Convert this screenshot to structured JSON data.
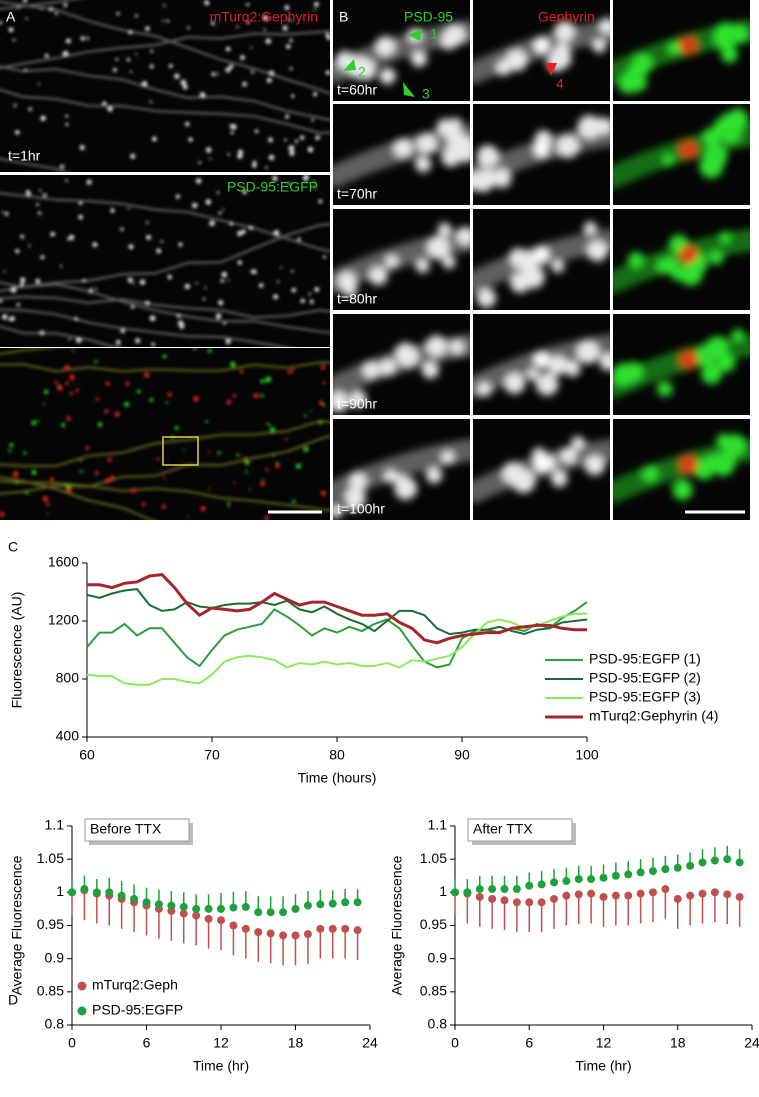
{
  "panel_a": {
    "label": "A",
    "gephyrin_label": "mTurq2:Gephyrin",
    "time": "t=1hr",
    "psd_label": "PSD-95:EGFP"
  },
  "panel_b": {
    "label": "B",
    "psd_header": "PSD-95",
    "gephyrin_header": "Gephyrin",
    "markers": [
      "1",
      "2",
      "3",
      "4"
    ],
    "times": [
      "t=60hr",
      "t=70hr",
      "t=80hr",
      "t=90hr",
      "t=100hr"
    ]
  },
  "chart_data": [
    {
      "type": "line",
      "panel_label": "C",
      "ylabel": "Fluorescence (AU)",
      "xlabel": "Time (hours)",
      "xlim": [
        60,
        100
      ],
      "xticks": [
        60,
        70,
        80,
        90,
        100
      ],
      "ylim": [
        400,
        1600
      ],
      "yticks": [
        400,
        800,
        1200,
        1600
      ],
      "legend": "right",
      "x": [
        60,
        61,
        62,
        63,
        64,
        65,
        66,
        67,
        68,
        69,
        70,
        71,
        72,
        73,
        74,
        75,
        76,
        77,
        78,
        79,
        80,
        81,
        82,
        83,
        84,
        85,
        86,
        87,
        88,
        89,
        90,
        91,
        92,
        93,
        94,
        95,
        96,
        97,
        98,
        99,
        100
      ],
      "series": [
        {
          "name": "PSD-95:EGFP (1)",
          "color": "#2e9e3a",
          "values": [
            1020,
            1120,
            1120,
            1180,
            1100,
            1150,
            1150,
            1050,
            950,
            890,
            1000,
            1100,
            1140,
            1160,
            1180,
            1280,
            1230,
            1170,
            1100,
            1150,
            1120,
            1160,
            1130,
            1180,
            1210,
            1150,
            1030,
            920,
            880,
            900,
            1080,
            1130,
            1140,
            1120,
            1150,
            1130,
            1180,
            1150,
            1220,
            1270,
            1330
          ]
        },
        {
          "name": "PSD-95:EGFP (2)",
          "color": "#1b6b34",
          "values": [
            1380,
            1360,
            1390,
            1410,
            1420,
            1310,
            1270,
            1280,
            1330,
            1300,
            1290,
            1310,
            1320,
            1320,
            1330,
            1310,
            1340,
            1280,
            1260,
            1300,
            1250,
            1210,
            1180,
            1130,
            1200,
            1270,
            1270,
            1240,
            1150,
            1110,
            1120,
            1140,
            1140,
            1160,
            1130,
            1110,
            1140,
            1150,
            1190,
            1200,
            1210
          ]
        },
        {
          "name": "PSD-95:EGFP (3)",
          "color": "#8ee860",
          "values": [
            830,
            820,
            820,
            770,
            760,
            760,
            800,
            800,
            780,
            770,
            830,
            920,
            950,
            960,
            950,
            930,
            880,
            910,
            900,
            920,
            900,
            910,
            890,
            890,
            910,
            880,
            930,
            920,
            940,
            960,
            1020,
            1110,
            1190,
            1210,
            1190,
            1150,
            1170,
            1200,
            1230,
            1250,
            1250
          ]
        },
        {
          "name": "mTurq2:Gephyrin (4)",
          "color": "#a3262a",
          "values": [
            1450,
            1450,
            1430,
            1460,
            1470,
            1510,
            1520,
            1430,
            1320,
            1240,
            1290,
            1280,
            1270,
            1280,
            1330,
            1390,
            1350,
            1310,
            1330,
            1330,
            1300,
            1270,
            1240,
            1240,
            1250,
            1190,
            1150,
            1070,
            1050,
            1080,
            1100,
            1110,
            1120,
            1120,
            1150,
            1160,
            1170,
            1170,
            1150,
            1140,
            1140
          ]
        }
      ]
    },
    {
      "type": "scatter",
      "panel_label": "D",
      "title": "Before TTX",
      "ylabel": "Average Fluorescence",
      "xlabel": "Time (hr)",
      "xlim": [
        0,
        24
      ],
      "xticks": [
        0,
        6,
        12,
        18,
        24
      ],
      "ylim": [
        0.8,
        1.1
      ],
      "yticks": [
        0.8,
        0.85,
        0.9,
        0.95,
        1,
        1.05,
        1.1
      ],
      "legend": "lower left",
      "x": [
        0,
        1,
        2,
        3,
        4,
        5,
        6,
        7,
        8,
        9,
        10,
        11,
        12,
        13,
        14,
        15,
        16,
        17,
        18,
        19,
        20,
        21,
        22,
        23
      ],
      "series": [
        {
          "name": "mTurq2:Geph",
          "color": "#c0504d",
          "error_direction": "down",
          "values": [
            1,
            1.003,
            0.998,
            0.995,
            0.99,
            0.985,
            0.98,
            0.975,
            0.972,
            0.968,
            0.965,
            0.96,
            0.958,
            0.95,
            0.945,
            0.94,
            0.938,
            0.935,
            0.935,
            0.937,
            0.945,
            0.945,
            0.945,
            0.943
          ],
          "errors": [
            0.035,
            0.045,
            0.045,
            0.045,
            0.045,
            0.045,
            0.045,
            0.045,
            0.045,
            0.045,
            0.045,
            0.045,
            0.045,
            0.045,
            0.045,
            0.045,
            0.045,
            0.045,
            0.045,
            0.045,
            0.045,
            0.045,
            0.045,
            0.045
          ]
        },
        {
          "name": "PSD-95:EGFP",
          "color": "#1ea03a",
          "error_direction": "up",
          "values": [
            1,
            1.005,
            1,
            1,
            0.995,
            0.99,
            0.985,
            0.982,
            0.98,
            0.978,
            0.975,
            0.975,
            0.975,
            0.977,
            0.978,
            0.97,
            0.97,
            0.97,
            0.975,
            0.98,
            0.982,
            0.983,
            0.985,
            0.985
          ],
          "errors": [
            0.02,
            0.02,
            0.02,
            0.022,
            0.022,
            0.022,
            0.022,
            0.022,
            0.022,
            0.022,
            0.022,
            0.022,
            0.024,
            0.024,
            0.024,
            0.024,
            0.024,
            0.024,
            0.022,
            0.022,
            0.022,
            0.02,
            0.02,
            0.02
          ]
        }
      ]
    },
    {
      "type": "scatter",
      "title": "After TTX",
      "ylabel": "Average Fluorescence",
      "xlabel": "Time (hr)",
      "xlim": [
        0,
        24
      ],
      "xticks": [
        0,
        6,
        12,
        18,
        24
      ],
      "ylim": [
        0.8,
        1.1
      ],
      "yticks": [
        0.8,
        0.85,
        0.9,
        0.95,
        1,
        1.05,
        1.1
      ],
      "x": [
        0,
        1,
        2,
        3,
        4,
        5,
        6,
        7,
        8,
        9,
        10,
        11,
        12,
        13,
        14,
        15,
        16,
        17,
        18,
        19,
        20,
        21,
        22,
        23
      ],
      "series": [
        {
          "color": "#c0504d",
          "error_direction": "down",
          "values": [
            1,
            0.998,
            0.993,
            0.99,
            0.988,
            0.985,
            0.985,
            0.985,
            0.99,
            0.995,
            0.997,
            0.998,
            0.993,
            0.995,
            0.995,
            0.998,
            1,
            1.005,
            0.99,
            0.995,
            0.998,
            1,
            0.997,
            0.993
          ],
          "errors": [
            0.035,
            0.045,
            0.045,
            0.045,
            0.045,
            0.045,
            0.045,
            0.045,
            0.045,
            0.045,
            0.045,
            0.045,
            0.045,
            0.045,
            0.045,
            0.045,
            0.045,
            0.045,
            0.045,
            0.045,
            0.045,
            0.045,
            0.045,
            0.045
          ]
        },
        {
          "color": "#1ea03a",
          "error_direction": "up",
          "values": [
            1,
            1,
            1.005,
            1.005,
            1.005,
            1.005,
            1.01,
            1.012,
            1.015,
            1.017,
            1.02,
            1.02,
            1.022,
            1.025,
            1.027,
            1.03,
            1.032,
            1.035,
            1.037,
            1.04,
            1.045,
            1.048,
            1.05,
            1.045
          ],
          "errors": [
            0.02,
            0.02,
            0.02,
            0.02,
            0.02,
            0.02,
            0.02,
            0.02,
            0.02,
            0.02,
            0.02,
            0.02,
            0.02,
            0.02,
            0.02,
            0.02,
            0.02,
            0.02,
            0.02,
            0.02,
            0.02,
            0.02,
            0.02,
            0.02
          ]
        }
      ]
    }
  ]
}
